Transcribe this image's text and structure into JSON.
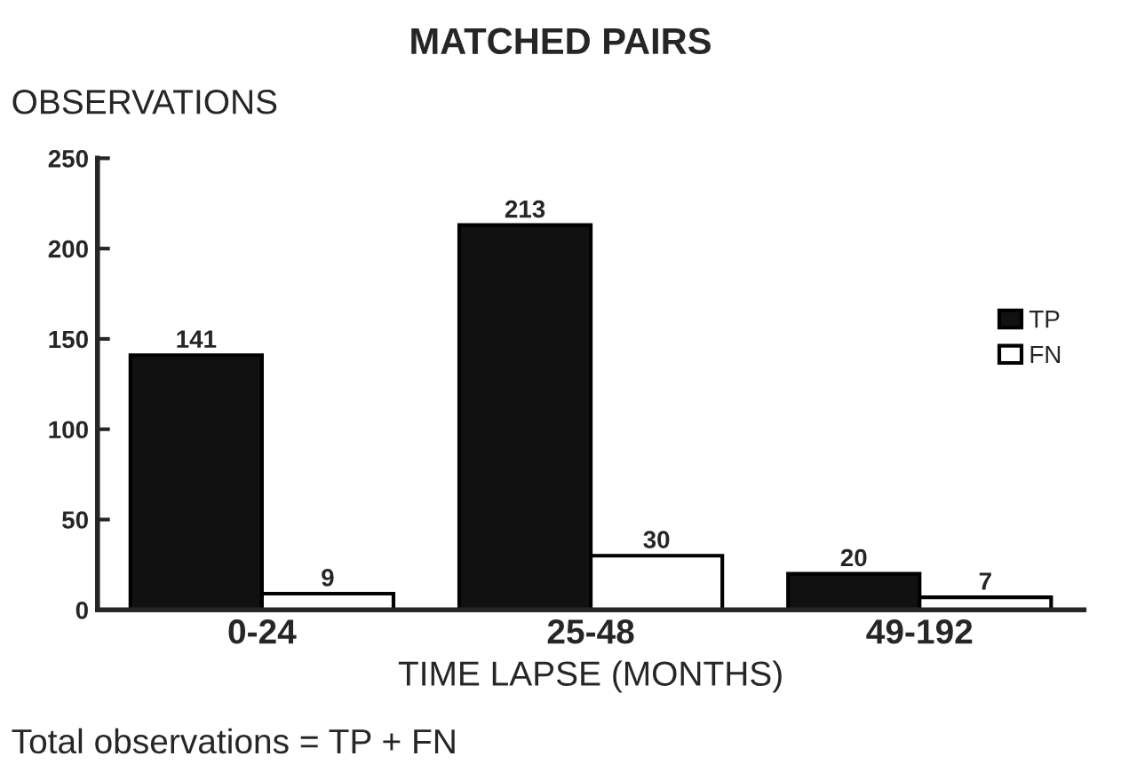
{
  "chart_data": {
    "type": "bar",
    "title": "MATCHED PAIRS",
    "ylabel": "OBSERVATIONS",
    "xlabel": "TIME LAPSE (MONTHS)",
    "categories": [
      "0-24",
      "25-48",
      "49-192"
    ],
    "series": [
      {
        "name": "TP",
        "color": "#111111",
        "values": [
          141,
          213,
          20
        ]
      },
      {
        "name": "FN",
        "color": "#ffffff",
        "values": [
          9,
          30,
          7
        ]
      }
    ],
    "ylim": [
      0,
      250
    ],
    "yticks": [
      0,
      50,
      100,
      150,
      200,
      250
    ],
    "data_labels": true,
    "legend": "right",
    "grid": false,
    "annotations": [
      "Total observations = TP + FN"
    ]
  }
}
